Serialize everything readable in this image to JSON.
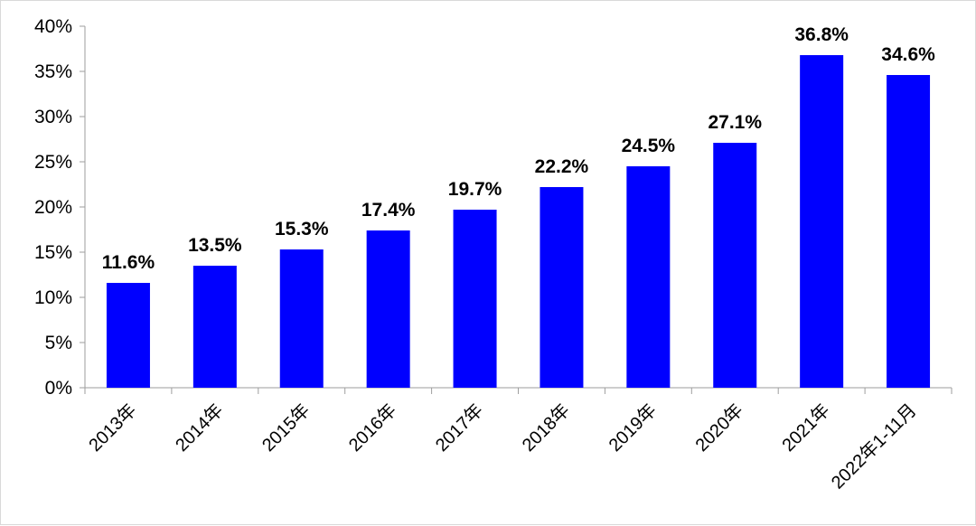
{
  "chart_data": {
    "type": "bar",
    "categories": [
      "2013年",
      "2014年",
      "2015年",
      "2016年",
      "2017年",
      "2018年",
      "2019年",
      "2020年",
      "2021年",
      "2022年1-11月"
    ],
    "values": [
      11.6,
      13.5,
      15.3,
      17.4,
      19.7,
      22.2,
      24.5,
      27.1,
      36.8,
      34.6
    ],
    "data_labels": [
      "11.6%",
      "13.5%",
      "15.3%",
      "17.4%",
      "19.7%",
      "22.2%",
      "24.5%",
      "27.1%",
      "36.8%",
      "34.6%"
    ],
    "yticks": [
      0,
      5,
      10,
      15,
      20,
      25,
      30,
      35,
      40
    ],
    "ytick_labels": [
      "0%",
      "5%",
      "10%",
      "15%",
      "20%",
      "25%",
      "30%",
      "35%",
      "40%"
    ],
    "ylim": [
      0,
      40
    ],
    "title": "",
    "xlabel": "",
    "ylabel": "",
    "grid": false,
    "legend": "none",
    "bar_color": "#0000ff"
  }
}
